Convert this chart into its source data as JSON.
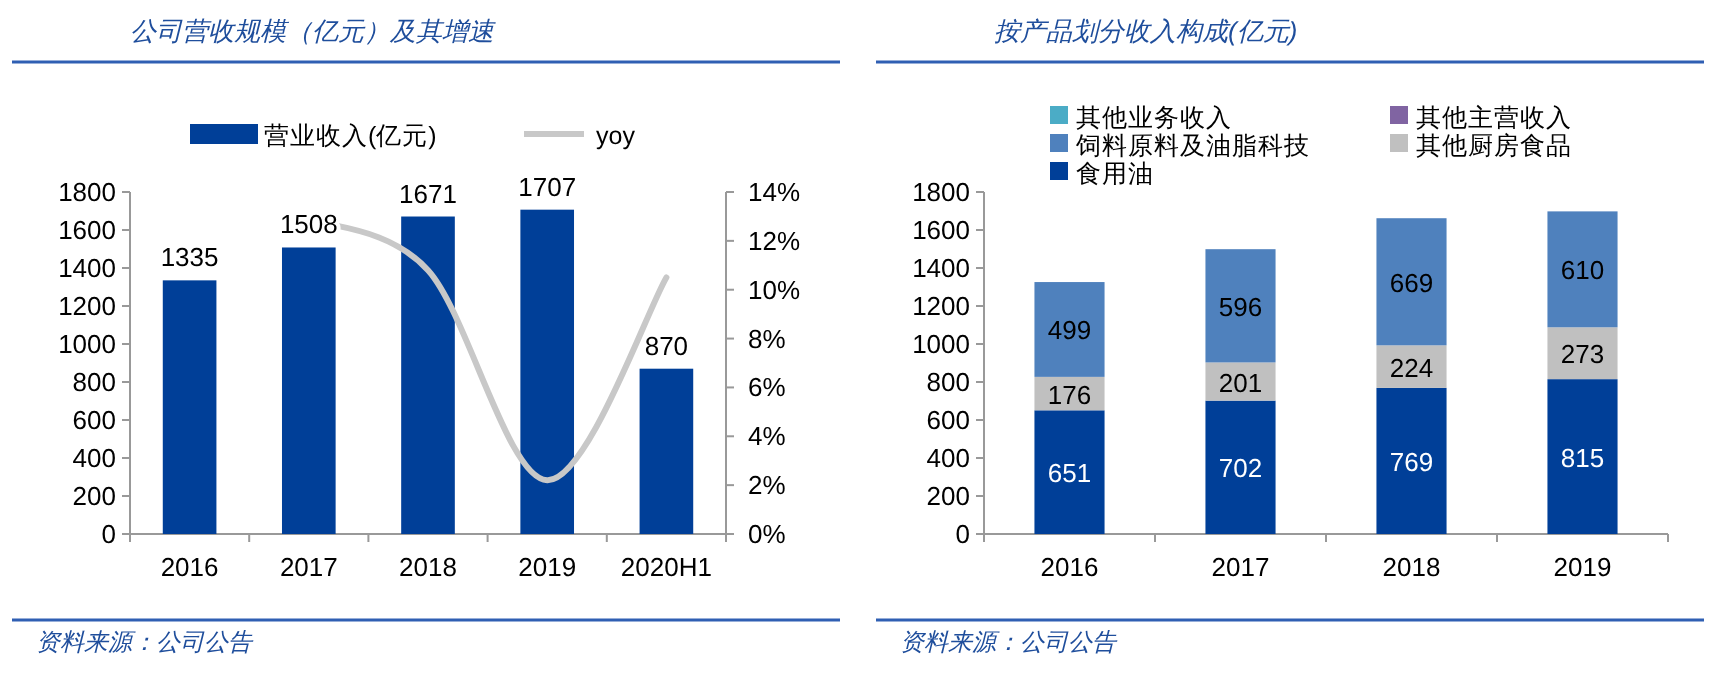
{
  "chart_data": [
    {
      "type": "bar",
      "title": "公司营收规模（亿元）及其增速",
      "categories": [
        "2016",
        "2017",
        "2018",
        "2019",
        "2020H1"
      ],
      "series": [
        {
          "name": "营业收入(亿元)",
          "color": "#003f98",
          "values": [
            1335,
            1508,
            1671,
            1707,
            870
          ],
          "value_labels": [
            "1335",
            "1508",
            "1671",
            "1707",
            "870"
          ]
        },
        {
          "name": "yoy",
          "type": "line",
          "axis": "y2",
          "color": "#c8c8c8",
          "values": [
            null,
            12.9,
            10.8,
            2.2,
            10.5
          ]
        }
      ],
      "ylim": [
        0,
        1800
      ],
      "yticks": [
        0,
        200,
        400,
        600,
        800,
        1000,
        1200,
        1400,
        1600,
        1800
      ],
      "y2lim": [
        0,
        14
      ],
      "y2ticks": [
        {
          "value": 0,
          "label": "0%"
        },
        {
          "value": 2,
          "label": "2%"
        },
        {
          "value": 4,
          "label": "4%"
        },
        {
          "value": 6,
          "label": "6%"
        },
        {
          "value": 8,
          "label": "8%"
        },
        {
          "value": 10,
          "label": "10%"
        },
        {
          "value": 12,
          "label": "12%"
        },
        {
          "value": 14,
          "label": "14%"
        }
      ],
      "legend": "top",
      "grid": false,
      "annotations": [
        "资料来源：公司公告"
      ]
    },
    {
      "type": "bar",
      "stacked": true,
      "title": "按产品划分收入构成(亿元)",
      "categories": [
        "2016",
        "2017",
        "2018",
        "2019"
      ],
      "series": [
        {
          "name": "食用油",
          "color": "#003f98",
          "values": [
            651,
            702,
            769,
            815
          ]
        },
        {
          "name": "其他厨房食品",
          "color": "#c0c0c0",
          "values": [
            176,
            201,
            224,
            273
          ]
        },
        {
          "name": "饲料原料及油脂科技",
          "color": "#4f81bd",
          "values": [
            499,
            596,
            669,
            610
          ]
        },
        {
          "name": "其他主营收入",
          "color": "#8064a2",
          "values": [
            null,
            null,
            null,
            null
          ]
        },
        {
          "name": "其他业务收入",
          "color": "#4bacc6",
          "values": [
            null,
            null,
            null,
            null
          ]
        }
      ],
      "ylim": [
        0,
        1800
      ],
      "yticks": [
        0,
        200,
        400,
        600,
        800,
        1000,
        1200,
        1400,
        1600,
        1800
      ],
      "data_labels": true,
      "legend": "top",
      "grid": false,
      "annotations": [
        "资料来源：公司公告"
      ]
    }
  ]
}
